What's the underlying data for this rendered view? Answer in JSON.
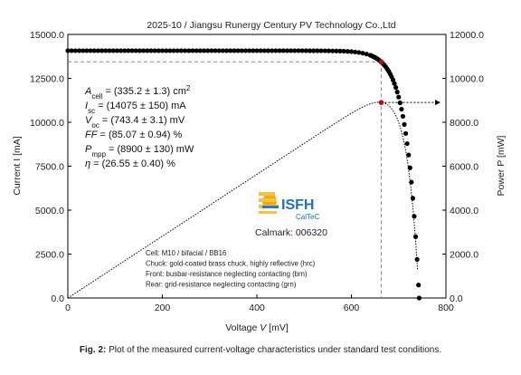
{
  "chart_data": {
    "type": "scatter",
    "title": "2025-10 / Jiangsu Runergy Century PV Technology Co.,Ltd",
    "xlabel_text": "Voltage",
    "xlabel_var": "V",
    "xlabel_unit": "[mV]",
    "ylabel_left": "Current I [mA]",
    "ylabel_right": "Power P [mW]",
    "xlim": [
      0,
      800
    ],
    "ylim_left": [
      0,
      15000
    ],
    "ylim_right": [
      0,
      12000
    ],
    "xticks": [
      "0",
      "200",
      "400",
      "600",
      "800"
    ],
    "yticks_left": [
      "0.0",
      "2500.0",
      "5000.0",
      "7500.0",
      "10000.0",
      "12500.0",
      "15000.0"
    ],
    "yticks_right": [
      "0.0",
      "2000.0",
      "4000.0",
      "6000.0",
      "8000.0",
      "10000.0",
      "12000.0"
    ],
    "series": [
      {
        "kind": "iv",
        "isc": 14075,
        "voc": 743.4,
        "style": "dots"
      },
      {
        "kind": "pv",
        "style": "dotted-line"
      }
    ],
    "mpp": {
      "v_mV": 663,
      "i_mA": 13440,
      "p_mW": 8900
    },
    "annotations": [
      {
        "sym": "A",
        "sub": "cell",
        "text": " = (335.2 ± 1.3) cm",
        "sup": "2"
      },
      {
        "sym": "I",
        "sub": "sc",
        "text": " = (14075 ± 150) mA"
      },
      {
        "sym": "V",
        "sub": "oc",
        "text": " = (743.4 ± 3.1) mV"
      },
      {
        "sym": "FF",
        "sub": "",
        "text": " = (85.07 ± 0.94) %"
      },
      {
        "sym": "P",
        "sub": "mpp",
        "text": " = (8900 ± 130) mW"
      },
      {
        "sym": "η",
        "sub": "",
        "text": " = (26.55 ± 0.40) %"
      }
    ],
    "logo": {
      "name": "ISFH",
      "sub": "CalTeC"
    },
    "calmark": "Calmark: 006320",
    "notes": [
      "Cell: M10 / bifacial / BB16",
      "Chuck: gold-coated brass chuck, highly reflective (hrc)",
      "Front: busbar-resistance neglecting contacting (brn)",
      "Rear: grid-resistance neglecting contacting (grn)"
    ]
  },
  "caption": {
    "label": "Fig. 2:",
    "text": " Plot of the measured current-voltage characteristics under standard test conditions."
  },
  "colors": {
    "iv": "#000000",
    "mpp": "#cc0000",
    "guide": "#888888"
  }
}
